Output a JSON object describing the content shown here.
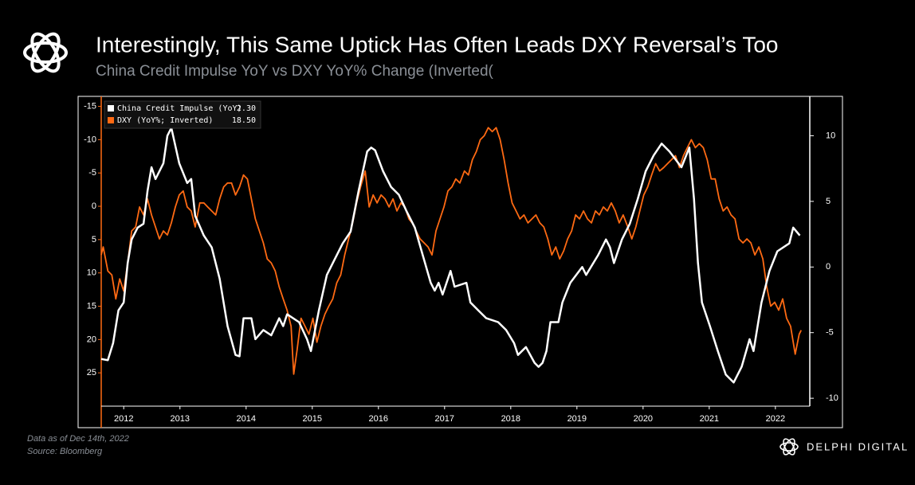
{
  "chart_data": {
    "type": "line",
    "title": "Interestingly, This Same Uptick Has Often Leads DXY Reversal’s Too",
    "subtitle": "China Credit Impulse YoY vs DXY YoY% Change (Inverted(",
    "footnote": "Data as of Dec 14th, 2022",
    "source": "Source: Bloomberg",
    "brand": "DELPHI DIGITAL",
    "xlim": [
      2012.31,
      2023.02
    ],
    "xticks": [
      {
        "value": 2012.65,
        "label": "2012"
      },
      {
        "value": 2013.5,
        "label": "2013"
      },
      {
        "value": 2014.5,
        "label": "2014"
      },
      {
        "value": 2015.5,
        "label": "2015"
      },
      {
        "value": 2016.5,
        "label": "2016"
      },
      {
        "value": 2017.5,
        "label": "2017"
      },
      {
        "value": 2018.5,
        "label": "2018"
      },
      {
        "value": 2019.5,
        "label": "2019"
      },
      {
        "value": 2020.5,
        "label": "2020"
      },
      {
        "value": 2021.5,
        "label": "2021"
      },
      {
        "value": 2022.5,
        "label": "2022"
      }
    ],
    "ylim": [
      -16.5,
      30
    ],
    "y_inverted": true,
    "yticks": [
      -15,
      -10,
      -5,
      0,
      5,
      10,
      15,
      20,
      25
    ],
    "y2lim": [
      -10.6,
      13
    ],
    "y2ticks": [
      -10,
      -5,
      0,
      5,
      10
    ],
    "grid": false,
    "legend": "top-left",
    "series": [
      {
        "name": "China Credit Impulse (YoY)",
        "color": "#ffffff",
        "axis": "y2",
        "last_value": 2.3,
        "last_value_label": "2.30",
        "x": [
          2012.31,
          2012.41,
          2012.49,
          2012.57,
          2012.65,
          2012.71,
          2012.77,
          2012.86,
          2012.95,
          2013.01,
          2013.07,
          2013.13,
          2013.25,
          2013.31,
          2013.37,
          2013.49,
          2013.61,
          2013.67,
          2013.73,
          2013.86,
          2013.98,
          2014.1,
          2014.22,
          2014.34,
          2014.4,
          2014.46,
          2014.58,
          2014.64,
          2014.76,
          2014.88,
          2015.0,
          2015.06,
          2015.12,
          2015.3,
          2015.42,
          2015.48,
          2015.6,
          2015.72,
          2015.84,
          2015.96,
          2016.08,
          2016.2,
          2016.33,
          2016.39,
          2016.45,
          2016.57,
          2016.69,
          2016.81,
          2016.93,
          2017.05,
          2017.17,
          2017.29,
          2017.35,
          2017.41,
          2017.47,
          2017.59,
          2017.65,
          2017.83,
          2017.89,
          2018.01,
          2018.13,
          2018.31,
          2018.43,
          2018.55,
          2018.61,
          2018.73,
          2018.86,
          2018.92,
          2018.98,
          2019.04,
          2019.1,
          2019.22,
          2019.28,
          2019.4,
          2019.58,
          2019.64,
          2019.82,
          2019.94,
          2020.0,
          2020.06,
          2020.18,
          2020.3,
          2020.42,
          2020.54,
          2020.66,
          2020.78,
          2020.9,
          2021.08,
          2021.2,
          2021.27,
          2021.33,
          2021.39,
          2021.51,
          2021.63,
          2021.75,
          2021.87,
          2021.99,
          2022.11,
          2022.17,
          2022.29,
          2022.41,
          2022.53,
          2022.71,
          2022.77,
          2022.87
        ],
        "values": [
          -7.0,
          -7.1,
          -5.8,
          -3.3,
          -2.7,
          0.3,
          2.1,
          3.0,
          3.3,
          5.8,
          7.6,
          6.7,
          7.9,
          10.0,
          10.6,
          7.9,
          6.4,
          6.7,
          3.9,
          2.4,
          1.5,
          -0.9,
          -4.5,
          -6.7,
          -6.8,
          -3.9,
          -3.9,
          -5.5,
          -4.8,
          -5.2,
          -3.9,
          -4.5,
          -3.6,
          -4.2,
          -5.5,
          -6.4,
          -3.3,
          -0.6,
          0.6,
          1.8,
          2.7,
          5.8,
          8.8,
          9.1,
          8.9,
          7.3,
          6.1,
          5.5,
          4.2,
          3.0,
          0.9,
          -1.2,
          -1.8,
          -1.2,
          -2.1,
          -0.3,
          -1.5,
          -1.2,
          -2.7,
          -3.3,
          -3.9,
          -4.2,
          -4.8,
          -5.8,
          -6.7,
          -6.1,
          -7.3,
          -7.6,
          -7.3,
          -6.4,
          -4.2,
          -4.2,
          -2.7,
          -1.2,
          0,
          -0.6,
          0.9,
          2.1,
          1.5,
          0.3,
          2.1,
          3.3,
          5.2,
          7.3,
          8.5,
          9.4,
          8.8,
          7.6,
          9.1,
          5.2,
          0.3,
          -2.7,
          -4.5,
          -6.4,
          -8.2,
          -8.8,
          -7.6,
          -5.5,
          -6.4,
          -2.7,
          -0.3,
          1.2,
          1.8,
          3.0,
          2.4
        ]
      },
      {
        "name": "DXY (YoY%; Inverted)",
        "color": "#ff6a13",
        "axis": "y",
        "last_value": 18.5,
        "last_value_label": "18.50",
        "x": [
          2012.31,
          2012.34,
          2012.41,
          2012.47,
          2012.53,
          2012.59,
          2012.65,
          2012.71,
          2012.77,
          2012.83,
          2012.89,
          2012.95,
          2013.01,
          2013.07,
          2013.13,
          2013.19,
          2013.25,
          2013.31,
          2013.37,
          2013.43,
          2013.49,
          2013.55,
          2013.61,
          2013.67,
          2013.73,
          2013.8,
          2013.86,
          2013.92,
          2013.98,
          2014.04,
          2014.1,
          2014.16,
          2014.22,
          2014.28,
          2014.34,
          2014.4,
          2014.46,
          2014.52,
          2014.58,
          2014.64,
          2014.7,
          2014.76,
          2014.82,
          2014.88,
          2014.94,
          2015.0,
          2015.06,
          2015.12,
          2015.18,
          2015.22,
          2015.27,
          2015.33,
          2015.39,
          2015.45,
          2015.51,
          2015.57,
          2015.63,
          2015.69,
          2015.75,
          2015.81,
          2015.87,
          2015.93,
          2015.99,
          2016.05,
          2016.11,
          2016.17,
          2016.23,
          2016.3,
          2016.36,
          2016.42,
          2016.48,
          2016.54,
          2016.6,
          2016.66,
          2016.72,
          2016.78,
          2016.84,
          2016.9,
          2016.96,
          2017.01,
          2017.07,
          2017.13,
          2017.19,
          2017.25,
          2017.31,
          2017.37,
          2017.43,
          2017.49,
          2017.55,
          2017.61,
          2017.67,
          2017.73,
          2017.8,
          2017.86,
          2017.92,
          2017.98,
          2018.04,
          2018.1,
          2018.16,
          2018.22,
          2018.28,
          2018.34,
          2018.4,
          2018.46,
          2018.52,
          2018.58,
          2018.64,
          2018.7,
          2018.76,
          2018.82,
          2018.88,
          2018.94,
          2019.0,
          2019.06,
          2019.12,
          2019.18,
          2019.24,
          2019.3,
          2019.36,
          2019.42,
          2019.48,
          2019.54,
          2019.6,
          2019.66,
          2019.72,
          2019.78,
          2019.84,
          2019.9,
          2019.96,
          2020.02,
          2020.08,
          2020.14,
          2020.2,
          2020.27,
          2020.33,
          2020.39,
          2020.45,
          2020.51,
          2020.57,
          2020.63,
          2020.69,
          2020.75,
          2020.81,
          2020.87,
          2020.93,
          2020.99,
          2021.05,
          2021.11,
          2021.17,
          2021.23,
          2021.29,
          2021.35,
          2021.41,
          2021.47,
          2021.53,
          2021.59,
          2021.65,
          2021.71,
          2021.77,
          2021.83,
          2021.89,
          2021.95,
          2022.01,
          2022.07,
          2022.13,
          2022.19,
          2022.25,
          2022.31,
          2022.37,
          2022.43,
          2022.49,
          2022.55,
          2022.61,
          2022.67,
          2022.73,
          2022.8,
          2022.86,
          2022.89
        ],
        "values": [
          7.3,
          6.1,
          9.7,
          10.3,
          13.9,
          10.9,
          12.7,
          8.5,
          3.7,
          3.1,
          0.1,
          1.3,
          -1.1,
          1.3,
          3.1,
          4.9,
          3.7,
          4.3,
          2.5,
          0.1,
          -1.7,
          -2.3,
          0.1,
          0.7,
          3.1,
          -0.5,
          -0.5,
          0.1,
          0.7,
          1.3,
          -1.1,
          -2.9,
          -3.5,
          -3.5,
          -1.7,
          -2.9,
          -4.7,
          -4.1,
          -1.1,
          1.9,
          3.7,
          5.5,
          7.9,
          8.5,
          9.7,
          12.1,
          13.9,
          15.6,
          18.0,
          25.2,
          21.6,
          16.8,
          18.0,
          19.2,
          16.8,
          20.4,
          18.0,
          16.2,
          15.0,
          13.9,
          11.5,
          10.3,
          7.3,
          4.9,
          2.5,
          -0.5,
          -2.9,
          -5.3,
          0.1,
          -1.7,
          -0.5,
          -1.7,
          -1.1,
          0.1,
          -1.1,
          0.7,
          -0.5,
          0.1,
          1.9,
          2.5,
          3.7,
          4.9,
          5.5,
          6.1,
          7.3,
          3.7,
          1.9,
          0.1,
          -2.3,
          -2.9,
          -4.1,
          -3.5,
          -5.3,
          -4.7,
          -7.0,
          -8.2,
          -10.0,
          -10.6,
          -11.8,
          -11.2,
          -11.8,
          -10.0,
          -7.0,
          -3.5,
          -0.5,
          0.7,
          1.9,
          1.3,
          2.5,
          1.9,
          1.3,
          2.5,
          3.1,
          4.9,
          7.3,
          6.1,
          7.9,
          6.7,
          4.9,
          3.7,
          1.3,
          1.9,
          0.7,
          1.9,
          2.5,
          0.7,
          1.3,
          0.1,
          0.7,
          -0.5,
          0.7,
          2.5,
          1.3,
          3.1,
          4.9,
          3.1,
          0.7,
          -1.7,
          -2.9,
          -4.7,
          -6.4,
          -5.3,
          -5.8,
          -6.4,
          -7.0,
          -7.6,
          -5.8,
          -7.6,
          -8.8,
          -10.0,
          -8.8,
          -9.4,
          -8.8,
          -7.0,
          -4.1,
          -4.1,
          -1.1,
          0.7,
          0.1,
          1.3,
          1.9,
          4.9,
          5.5,
          4.9,
          5.5,
          7.3,
          6.1,
          7.9,
          12.1,
          15.0,
          14.4,
          15.6,
          13.9,
          16.8,
          18.0,
          22.2,
          19.2,
          18.6
        ]
      }
    ]
  }
}
